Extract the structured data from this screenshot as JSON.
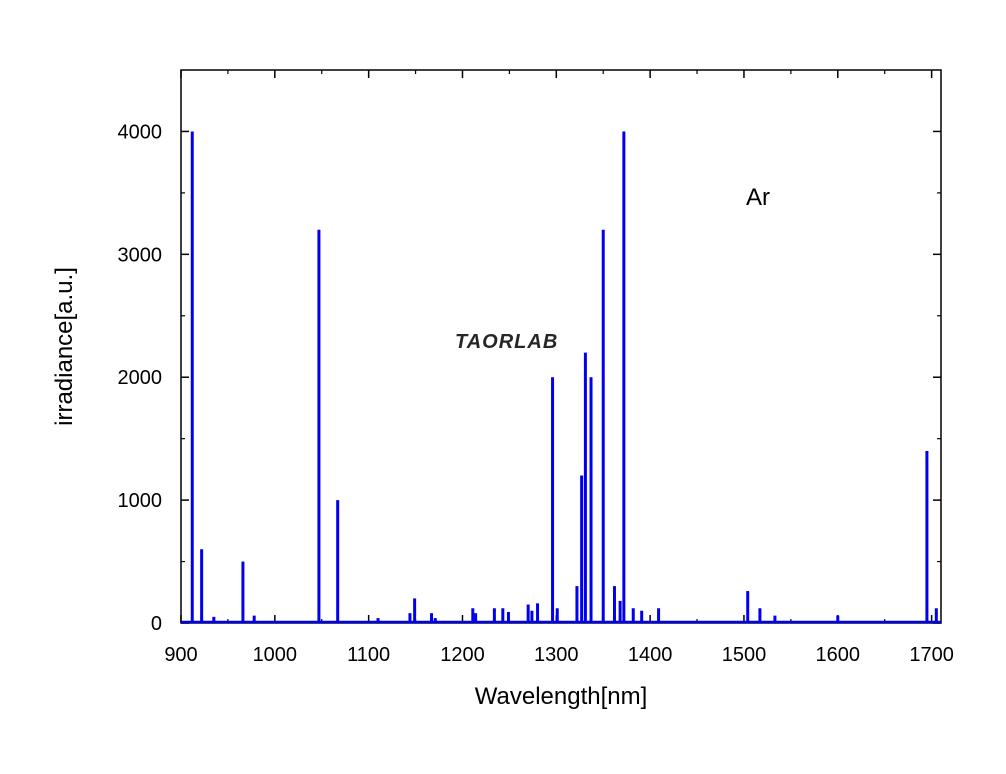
{
  "chart_data": {
    "type": "line",
    "xlabel": "Wavelength[nm]",
    "ylabel": "irradiance[a.u.]",
    "xlim": [
      900,
      1710
    ],
    "ylim": [
      0,
      4500
    ],
    "x_ticks": [
      900,
      1000,
      1100,
      1200,
      1300,
      1400,
      1500,
      1600,
      1700
    ],
    "y_ticks": [
      0,
      1000,
      2000,
      3000,
      4000
    ],
    "grid": false,
    "series_color": "#0000ee",
    "annotation": "Ar",
    "watermark": "TAORLAB",
    "series": [
      {
        "peaks": [
          {
            "x": 912,
            "y": 4000
          },
          {
            "x": 922,
            "y": 600
          },
          {
            "x": 935,
            "y": 50
          },
          {
            "x": 966,
            "y": 500
          },
          {
            "x": 978,
            "y": 60
          },
          {
            "x": 1047,
            "y": 3200
          },
          {
            "x": 1067,
            "y": 1000
          },
          {
            "x": 1110,
            "y": 40
          },
          {
            "x": 1144,
            "y": 80
          },
          {
            "x": 1149,
            "y": 200
          },
          {
            "x": 1167,
            "y": 80
          },
          {
            "x": 1171,
            "y": 40
          },
          {
            "x": 1211,
            "y": 120
          },
          {
            "x": 1214,
            "y": 80
          },
          {
            "x": 1234,
            "y": 120
          },
          {
            "x": 1243,
            "y": 120
          },
          {
            "x": 1249,
            "y": 90
          },
          {
            "x": 1270,
            "y": 150
          },
          {
            "x": 1274,
            "y": 100
          },
          {
            "x": 1280,
            "y": 160
          },
          {
            "x": 1296,
            "y": 2000
          },
          {
            "x": 1301,
            "y": 120
          },
          {
            "x": 1322,
            "y": 300
          },
          {
            "x": 1327,
            "y": 1200
          },
          {
            "x": 1331,
            "y": 2200
          },
          {
            "x": 1337,
            "y": 2000
          },
          {
            "x": 1350,
            "y": 3200
          },
          {
            "x": 1362,
            "y": 300
          },
          {
            "x": 1368,
            "y": 180
          },
          {
            "x": 1372,
            "y": 4000
          },
          {
            "x": 1382,
            "y": 120
          },
          {
            "x": 1391,
            "y": 100
          },
          {
            "x": 1409,
            "y": 120
          },
          {
            "x": 1504,
            "y": 260
          },
          {
            "x": 1517,
            "y": 120
          },
          {
            "x": 1533,
            "y": 60
          },
          {
            "x": 1600,
            "y": 60
          },
          {
            "x": 1695,
            "y": 1400
          },
          {
            "x": 1705,
            "y": 120
          }
        ]
      }
    ]
  }
}
